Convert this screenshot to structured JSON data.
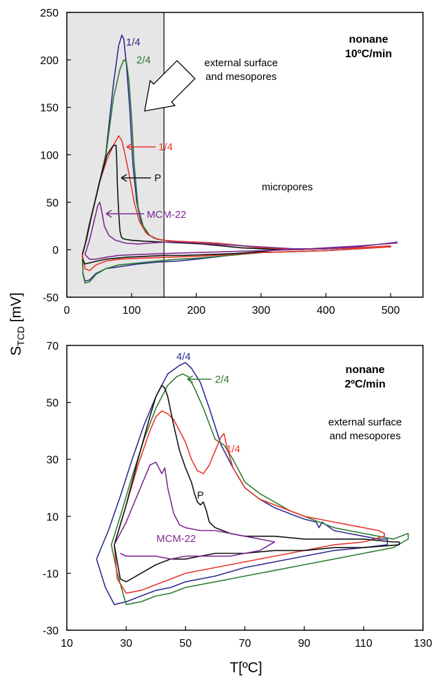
{
  "colors": {
    "blue": "#2e2b8f",
    "green": "#2e7d32",
    "red": "#e8352a",
    "black": "#111111",
    "purple": "#7b2a8e",
    "shade": "#e6e6e6"
  },
  "y_axis_label": {
    "main": "S",
    "sub": "TCD",
    "unit": " [mV]"
  },
  "x_axis_label": "T[ºC]",
  "chart_data": [
    {
      "type": "line",
      "title": "",
      "xlim": [
        0,
        550
      ],
      "ylim": [
        -50,
        250
      ],
      "xticks": [
        0,
        100,
        200,
        300,
        400,
        500
      ],
      "yticks": [
        -50,
        0,
        50,
        100,
        150,
        200,
        250
      ],
      "xtick_labels": [
        "0",
        "100",
        "200",
        "300",
        "400",
        "500"
      ],
      "ytick_labels": [
        "-50",
        "0",
        "50",
        "100",
        "150",
        "200",
        "250"
      ],
      "grid": false,
      "shaded_region": {
        "x": [
          0,
          150
        ]
      },
      "annotations": {
        "condition": [
          "nonane",
          "10ºC/min"
        ],
        "external": [
          "external surface",
          "and mesopores"
        ],
        "micropores": "micropores",
        "label_blue": "1/4",
        "label_green": "2/4",
        "label_red": "1/4",
        "label_black": "P",
        "label_purple": "MCM-22"
      },
      "series": [
        {
          "color_key": "blue",
          "x": [
            24,
            28,
            34,
            45,
            60,
            72,
            80,
            85,
            88,
            92,
            97,
            102,
            108,
            115,
            125,
            140,
            160,
            180,
            200,
            230,
            260,
            300,
            350,
            400,
            450,
            500,
            500,
            450,
            400,
            350,
            300,
            250,
            200,
            170,
            140,
            110,
            80,
            60,
            45,
            35,
            28,
            25,
            24
          ],
          "y": [
            -5,
            5,
            25,
            55,
            100,
            175,
            215,
            226,
            222,
            195,
            150,
            90,
            50,
            28,
            16,
            11,
            9,
            8,
            8,
            7,
            5,
            2,
            0,
            1,
            2,
            4,
            3,
            1,
            -1,
            -2,
            -3,
            -6,
            -10,
            -12,
            -13,
            -15,
            -18,
            -20,
            -25,
            -32,
            -33,
            -25,
            -5
          ]
        },
        {
          "color_key": "green",
          "x": [
            24,
            28,
            34,
            45,
            60,
            72,
            82,
            88,
            92,
            96,
            100,
            104,
            110,
            118,
            128,
            140,
            160,
            180,
            200,
            230,
            260,
            300,
            350,
            400,
            450,
            500,
            500,
            450,
            400,
            350,
            300,
            250,
            200,
            170,
            140,
            110,
            80,
            60,
            45,
            35,
            28,
            25,
            24
          ],
          "y": [
            -5,
            5,
            25,
            55,
            98,
            160,
            190,
            200,
            198,
            178,
            140,
            90,
            45,
            25,
            15,
            11,
            9,
            8,
            8,
            7,
            5,
            2,
            0,
            1,
            2,
            3,
            3,
            1,
            -1,
            -2,
            -3,
            -6,
            -9,
            -10,
            -12,
            -14,
            -16,
            -20,
            -26,
            -34,
            -35,
            -26,
            -5
          ]
        },
        {
          "color_key": "red",
          "x": [
            24,
            30,
            38,
            50,
            62,
            72,
            80,
            85,
            90,
            96,
            104,
            112,
            122,
            135,
            150,
            170,
            200,
            230,
            260,
            300,
            350,
            400,
            450,
            500,
            500,
            450,
            400,
            350,
            300,
            250,
            200,
            150,
            110,
            80,
            60,
            45,
            35,
            28,
            24
          ],
          "y": [
            -5,
            10,
            35,
            70,
            95,
            110,
            120,
            115,
            100,
            80,
            50,
            30,
            18,
            12,
            10,
            9,
            8,
            7,
            5,
            2,
            0,
            1,
            2,
            4,
            3,
            1,
            -1,
            -2,
            -3,
            -5,
            -7,
            -8,
            -9,
            -10,
            -12,
            -16,
            -22,
            -20,
            -5
          ]
        },
        {
          "color_key": "black",
          "x": [
            24,
            30,
            38,
            50,
            62,
            72,
            76,
            77,
            78,
            80,
            82,
            84,
            86,
            90,
            100,
            120,
            150,
            180,
            210,
            240,
            270,
            300,
            330,
            330,
            300,
            260,
            220,
            180,
            150,
            120,
            90,
            60,
            40,
            28,
            24
          ],
          "y": [
            -5,
            10,
            35,
            70,
            100,
            110,
            110,
            95,
            70,
            40,
            20,
            14,
            12,
            11,
            10,
            9,
            8,
            7,
            6,
            4,
            2,
            1,
            0,
            0,
            -2,
            -4,
            -5,
            -6,
            -6,
            -7,
            -8,
            -10,
            -13,
            -15,
            -10
          ]
        },
        {
          "color_key": "purple",
          "x": [
            28,
            35,
            42,
            48,
            51,
            54,
            58,
            65,
            75,
            90,
            110,
            130,
            150,
            170,
            200,
            250,
            300,
            350,
            400,
            450,
            510,
            510,
            450,
            400,
            350,
            300,
            250,
            200,
            150,
            110,
            80,
            60,
            45,
            35,
            28
          ],
          "y": [
            -5,
            10,
            30,
            47,
            50,
            40,
            25,
            15,
            10,
            7,
            6,
            7,
            8,
            8,
            7,
            5,
            3,
            1,
            1,
            3,
            8,
            7,
            4,
            2,
            0,
            -1,
            -2,
            -3,
            -4,
            -5,
            -6,
            -8,
            -10,
            -10,
            -5
          ]
        }
      ]
    },
    {
      "type": "line",
      "title": "",
      "xlim": [
        10,
        130
      ],
      "ylim": [
        -30,
        70
      ],
      "xticks": [
        10,
        30,
        50,
        70,
        90,
        110,
        130
      ],
      "yticks": [
        -30,
        -10,
        10,
        30,
        50,
        70
      ],
      "xtick_labels": [
        "10",
        "30",
        "50",
        "70",
        "90",
        "110",
        "130"
      ],
      "ytick_labels": [
        "-30",
        "-10",
        "10",
        "30",
        "50",
        "70"
      ],
      "grid": false,
      "annotations": {
        "condition": [
          "nonane",
          "2ºC/min"
        ],
        "external": [
          "external surface",
          "and mesopores"
        ],
        "label_blue": "4/4",
        "label_green": "2/4",
        "label_red": "1/4",
        "label_black": "P",
        "label_purple": "MCM-22"
      },
      "series": [
        {
          "color_key": "blue",
          "x": [
            20,
            24,
            28,
            32,
            36,
            40,
            44,
            48,
            50,
            52,
            55,
            58,
            62,
            66,
            70,
            75,
            80,
            85,
            90,
            94,
            95,
            96,
            100,
            105,
            110,
            115,
            118,
            118,
            110,
            100,
            90,
            80,
            70,
            60,
            50,
            45,
            40,
            35,
            30,
            26,
            23,
            20
          ],
          "y": [
            -5,
            5,
            17,
            30,
            42,
            52,
            60,
            63,
            64,
            62,
            57,
            48,
            35,
            27,
            20,
            16,
            13,
            11,
            9,
            8,
            6,
            8,
            5,
            4,
            3,
            2,
            2,
            0,
            -1,
            -2,
            -4,
            -6,
            -8,
            -11,
            -13,
            -15,
            -16,
            -18,
            -20,
            -21,
            -15,
            -5
          ]
        },
        {
          "color_key": "green",
          "x": [
            25,
            28,
            32,
            36,
            40,
            44,
            47,
            49,
            51,
            53,
            56,
            60,
            63,
            66,
            70,
            75,
            80,
            85,
            90,
            95,
            100,
            105,
            110,
            115,
            120,
            125,
            125,
            120,
            110,
            100,
            90,
            80,
            70,
            60,
            50,
            45,
            40,
            35,
            30,
            27,
            25
          ],
          "y": [
            0,
            10,
            24,
            37,
            48,
            56,
            59,
            60,
            59,
            55,
            48,
            37,
            35,
            30,
            22,
            18,
            15,
            12,
            10,
            8,
            6,
            5,
            4,
            3,
            2,
            4,
            2,
            -1,
            -3,
            -5,
            -7,
            -9,
            -11,
            -13,
            -15,
            -17,
            -18,
            -20,
            -21,
            -10,
            0
          ]
        },
        {
          "color_key": "red",
          "x": [
            26,
            30,
            34,
            38,
            40,
            42,
            44,
            46,
            48,
            50,
            52,
            54,
            56,
            58,
            60,
            62,
            63,
            64,
            66,
            70,
            75,
            80,
            85,
            90,
            95,
            100,
            105,
            110,
            115,
            117,
            117,
            110,
            100,
            90,
            80,
            70,
            60,
            50,
            45,
            40,
            35,
            30,
            27,
            26
          ],
          "y": [
            0,
            14,
            28,
            40,
            45,
            47,
            46,
            44,
            40,
            36,
            30,
            26,
            25,
            28,
            33,
            38,
            39,
            34,
            27,
            20,
            16,
            14,
            12,
            10,
            9,
            8,
            7,
            6,
            5,
            4,
            3,
            1,
            0,
            -2,
            -4,
            -6,
            -8,
            -10,
            -12,
            -14,
            -16,
            -17,
            -12,
            0
          ]
        },
        {
          "color_key": "black",
          "x": [
            26,
            30,
            34,
            38,
            40,
            42,
            43,
            44,
            46,
            48,
            50,
            52,
            53,
            54,
            55,
            56,
            57,
            58,
            60,
            65,
            70,
            80,
            90,
            100,
            110,
            120,
            122,
            122,
            110,
            100,
            90,
            80,
            70,
            60,
            55,
            50,
            45,
            40,
            35,
            30,
            28,
            26
          ],
          "y": [
            0,
            14,
            30,
            45,
            52,
            56,
            55,
            52,
            42,
            33,
            27,
            22,
            18,
            15,
            14,
            15,
            12,
            8,
            6,
            4,
            3,
            3,
            2,
            2,
            2,
            1,
            1,
            0,
            -1,
            -1,
            -2,
            -2,
            -3,
            -3,
            -4,
            -5,
            -5,
            -7,
            -10,
            -13,
            -12,
            0
          ]
        },
        {
          "color_key": "purple",
          "x": [
            26,
            30,
            34,
            38,
            40,
            42,
            43,
            44,
            46,
            48,
            50,
            55,
            60,
            65,
            70,
            75,
            80,
            75,
            70,
            65,
            60,
            55,
            50,
            45,
            40,
            35,
            30,
            28
          ],
          "y": [
            0,
            8,
            18,
            28,
            29,
            25,
            27,
            20,
            11,
            7,
            6,
            5,
            5,
            4,
            3,
            2,
            1,
            -2,
            -3,
            -4,
            -4,
            -4,
            -4,
            -5,
            -4,
            -4,
            -4,
            -3
          ]
        }
      ]
    }
  ]
}
